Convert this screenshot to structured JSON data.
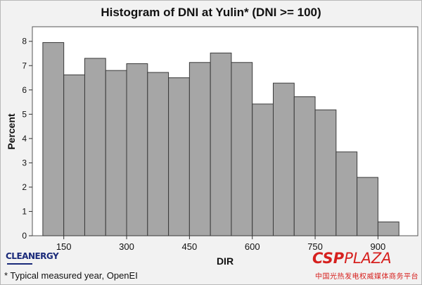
{
  "chart_data": {
    "type": "bar",
    "title": "Histogram of DNI at Yulin* (DNI >= 100)",
    "xlabel": "DIR",
    "ylabel": "Percent",
    "bin_width": 50,
    "bins": [
      {
        "start": 100,
        "end": 150,
        "value": 7.95
      },
      {
        "start": 150,
        "end": 200,
        "value": 6.62
      },
      {
        "start": 200,
        "end": 250,
        "value": 7.3
      },
      {
        "start": 250,
        "end": 300,
        "value": 6.8
      },
      {
        "start": 300,
        "end": 350,
        "value": 7.08
      },
      {
        "start": 350,
        "end": 400,
        "value": 6.72
      },
      {
        "start": 400,
        "end": 450,
        "value": 6.5
      },
      {
        "start": 450,
        "end": 500,
        "value": 7.13
      },
      {
        "start": 500,
        "end": 550,
        "value": 7.52
      },
      {
        "start": 550,
        "end": 600,
        "value": 7.13
      },
      {
        "start": 600,
        "end": 650,
        "value": 5.42
      },
      {
        "start": 650,
        "end": 700,
        "value": 6.28
      },
      {
        "start": 700,
        "end": 750,
        "value": 5.72
      },
      {
        "start": 750,
        "end": 800,
        "value": 5.18
      },
      {
        "start": 800,
        "end": 850,
        "value": 3.45
      },
      {
        "start": 850,
        "end": 900,
        "value": 2.4
      },
      {
        "start": 900,
        "end": 950,
        "value": 0.57
      }
    ],
    "xlim": [
      75,
      995
    ],
    "ylim": [
      0,
      8.6
    ],
    "xticks": [
      150,
      300,
      450,
      600,
      750,
      900
    ],
    "yticks": [
      0,
      1,
      2,
      3,
      4,
      5,
      6,
      7,
      8
    ],
    "grid": false,
    "colors": {
      "bar_fill": "#a6a6a6",
      "bar_stroke": "#3a3a3a",
      "plot_bg": "#ffffff",
      "page_bg": "#f2f2f2"
    }
  },
  "footer": {
    "footnote": "* Typical measured year, OpenEI",
    "brand_left": "CLEANERGY",
    "brand_right_a": "CSP",
    "brand_right_b": "PLAZA",
    "brand_right_sub": "中国光热发电权威媒体商务平台"
  }
}
